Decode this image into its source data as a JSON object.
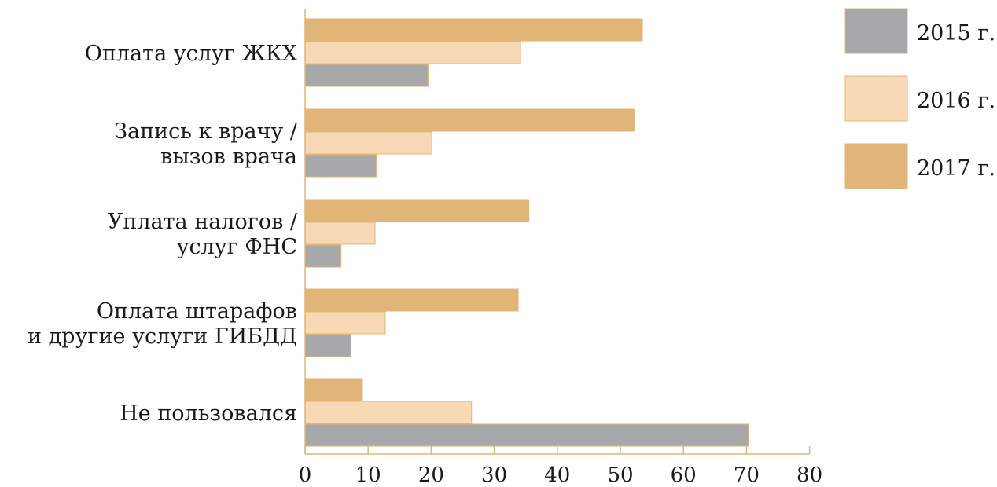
{
  "chart_data": {
    "type": "bar",
    "orientation": "horizontal",
    "title": "",
    "xlabel": "",
    "ylabel": "",
    "xlim": [
      0,
      80
    ],
    "ticks": [
      "0",
      "10",
      "20",
      "30",
      "40",
      "50",
      "60",
      "70",
      "80"
    ],
    "grid": false,
    "legend_position": "top-right",
    "categories": [
      [
        "Оплата услуг ЖКХ"
      ],
      [
        "Запись к врачу /",
        "вызов врача"
      ],
      [
        "Уплата налогов /",
        "услуг ФНС"
      ],
      [
        "Оплата штарафов",
        "и другие услуги ГИБДД"
      ],
      [
        "Не пользовался"
      ]
    ],
    "series": [
      {
        "name": "2015 г.",
        "color": "#a7a8aa",
        "values": [
          19.5,
          11.3,
          5.7,
          7.3,
          70.3
        ]
      },
      {
        "name": "2016 г.",
        "color": "#f7dab5",
        "values": [
          34.2,
          20.1,
          11.1,
          12.7,
          26.4
        ]
      },
      {
        "name": "2017 г.",
        "color": "#e0b577",
        "values": [
          53.5,
          52.2,
          35.5,
          33.8,
          9.1
        ]
      }
    ],
    "axis_color": "#e0b577"
  }
}
